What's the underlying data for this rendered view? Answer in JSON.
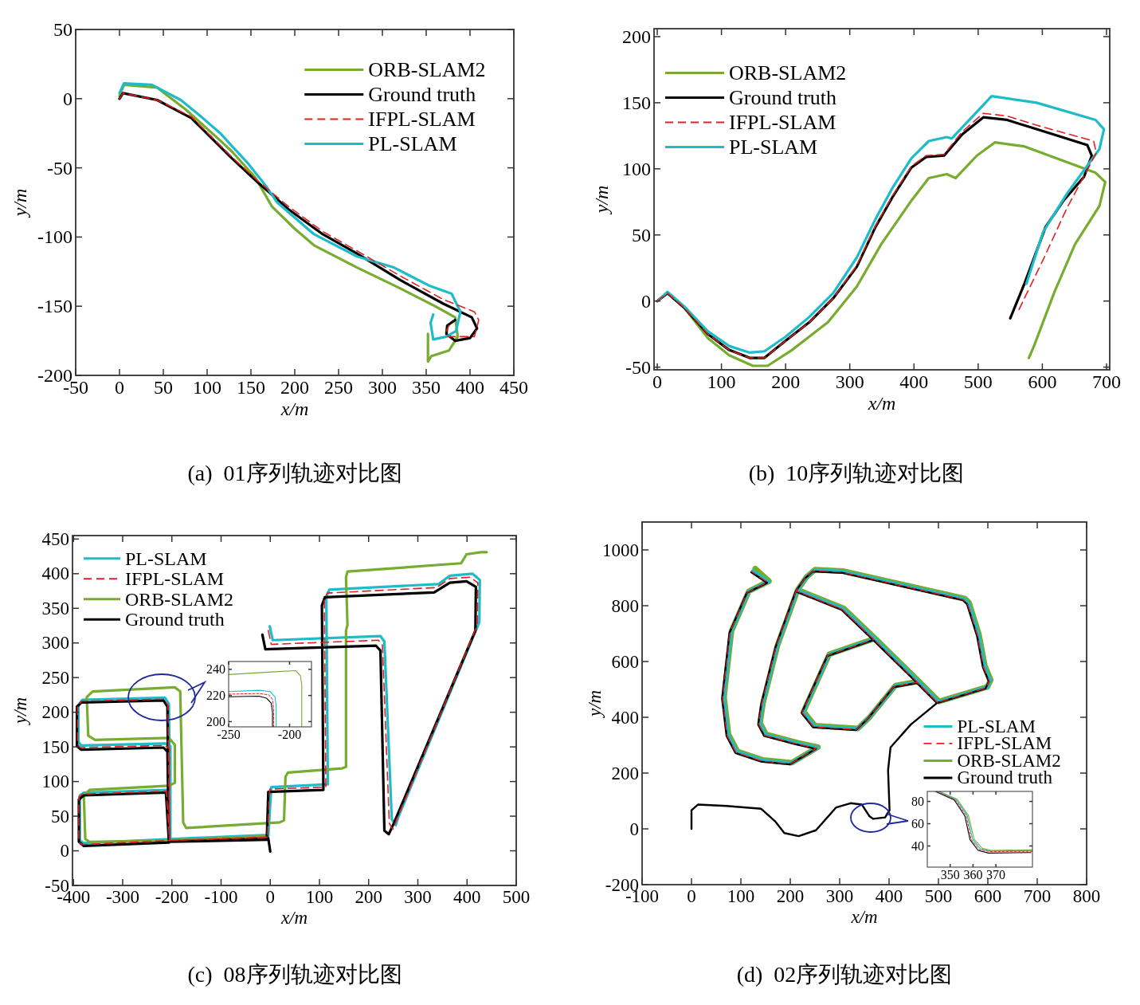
{
  "chart_data": [
    {
      "type": "line",
      "title": "(a)  01序列轨迹对比图",
      "xlabel": "x/m",
      "ylabel": "y/m",
      "xlim": [
        -50,
        450
      ],
      "ylim": [
        -200,
        50
      ],
      "xticks": [
        -50,
        0,
        50,
        100,
        150,
        200,
        250,
        300,
        350,
        400,
        450
      ],
      "yticks": [
        -200,
        -150,
        -100,
        -50,
        0,
        50
      ],
      "legend": "top right",
      "series": [
        {
          "name": "ORB-SLAM2",
          "color": "#77ac30",
          "line_style": "solid",
          "x": [
            0,
            5,
            43,
            76,
            111,
            128,
            155,
            174,
            200,
            222,
            271,
            320,
            360,
            383,
            386,
            376,
            356,
            352,
            352
          ],
          "values": [
            2,
            10,
            8,
            -8,
            -28,
            -38,
            -57,
            -78,
            -94,
            -106,
            -122,
            -137,
            -150,
            -158,
            -172,
            -182,
            -186,
            -190,
            -170
          ]
        },
        {
          "name": "Ground truth",
          "color": "#000000",
          "line_style": "solid",
          "x": [
            0,
            4,
            43,
            82,
            101,
            128,
            157,
            193,
            232,
            271,
            320,
            369,
            402,
            408,
            400,
            383,
            373,
            374,
            383
          ],
          "values": [
            0,
            4,
            -1,
            -14,
            -26,
            -43,
            -60,
            -80,
            -98,
            -112,
            -131,
            -148,
            -158,
            -166,
            -173,
            -175,
            -170,
            -164,
            -160
          ]
        },
        {
          "name": "IFPL-SLAM",
          "color": "#e02020",
          "line_style": "dashed",
          "x": [
            0,
            4,
            43,
            82,
            101,
            128,
            157,
            193,
            232,
            271,
            320,
            369,
            405,
            410,
            405,
            375,
            373,
            376
          ],
          "values": [
            0,
            4,
            -1,
            -13,
            -25,
            -42,
            -59,
            -78,
            -96,
            -110,
            -128,
            -145,
            -154,
            -160,
            -172,
            -172,
            -168,
            -164
          ]
        },
        {
          "name": "PL-SLAM",
          "color": "#1ebcc8",
          "line_style": "solid",
          "x": [
            0,
            5,
            37,
            70,
            95,
            115,
            128,
            147,
            167,
            180,
            222,
            271,
            313,
            353,
            379,
            389,
            384,
            373,
            358,
            355,
            358
          ],
          "values": [
            4,
            11,
            10,
            -1,
            -14,
            -25,
            -34,
            -47,
            -63,
            -75,
            -98,
            -114,
            -122,
            -135,
            -141,
            -154,
            -168,
            -172,
            -174,
            -162,
            -156
          ]
        }
      ]
    },
    {
      "type": "line",
      "title": "(b)  10序列轨迹对比图",
      "xlabel": "x/m",
      "ylabel": "y/m",
      "xlim": [
        -5,
        705
      ],
      "ylim": [
        -52,
        206
      ],
      "xticks": [
        0,
        100,
        200,
        300,
        400,
        500,
        600,
        700
      ],
      "yticks": [
        -50,
        0,
        50,
        100,
        150,
        200
      ],
      "legend": "top left",
      "series": [
        {
          "name": "ORB-SLAM2",
          "color": "#77ac30",
          "line_style": "solid",
          "x": [
            0,
            16,
            42,
            79,
            112,
            149,
            172,
            210,
            266,
            311,
            349,
            396,
            423,
            451,
            465,
            498,
            526,
            572,
            683,
            698,
            689,
            651,
            619,
            587,
            579
          ],
          "values": [
            0,
            6,
            -5,
            -28,
            -41,
            -49,
            -49,
            -37,
            -16,
            11,
            43,
            76,
            93,
            96,
            93,
            110,
            120,
            117,
            97,
            90,
            72,
            43,
            7,
            -34,
            -43
          ]
        },
        {
          "name": "Ground truth",
          "color": "#000000",
          "line_style": "solid",
          "x": [
            0,
            16,
            42,
            79,
            112,
            144,
            167,
            200,
            237,
            274,
            311,
            340,
            367,
            396,
            419,
            447,
            475,
            508,
            545,
            591,
            670,
            677,
            665,
            633,
            605,
            572,
            550
          ],
          "values": [
            0,
            6,
            -5,
            -25,
            -37,
            -43,
            -43,
            -30,
            -16,
            2,
            26,
            56,
            79,
            101,
            109,
            110,
            126,
            139,
            137,
            130,
            118,
            110,
            94,
            76,
            56,
            13,
            -13
          ]
        },
        {
          "name": "IFPL-SLAM",
          "color": "#e02020",
          "line_style": "dashed",
          "x": [
            0,
            16,
            42,
            79,
            112,
            144,
            167,
            200,
            237,
            274,
            311,
            340,
            367,
            396,
            419,
            447,
            475,
            508,
            545,
            591,
            680,
            684,
            638,
            601,
            563
          ],
          "values": [
            0,
            6,
            -5,
            -25,
            -37,
            -43,
            -43,
            -30,
            -16,
            2,
            27,
            57,
            80,
            102,
            110,
            111,
            128,
            142,
            140,
            133,
            121,
            112,
            70,
            31,
            -7
          ]
        },
        {
          "name": "PL-SLAM",
          "color": "#1ebcc8",
          "line_style": "solid",
          "x": [
            0,
            16,
            42,
            79,
            112,
            144,
            167,
            200,
            237,
            274,
            311,
            340,
            367,
            396,
            423,
            451,
            459,
            521,
            591,
            683,
            696,
            689,
            638,
            601,
            575
          ],
          "values": [
            0,
            7,
            -4,
            -23,
            -34,
            -39,
            -38,
            -27,
            -12,
            6,
            33,
            62,
            86,
            108,
            121,
            124,
            123,
            155,
            150,
            137,
            130,
            115,
            81,
            52,
            13
          ]
        }
      ]
    },
    {
      "type": "line",
      "title": "(c)  08序列轨迹对比图",
      "xlabel": "x/m",
      "ylabel": "y/m",
      "xlim": [
        -402,
        500
      ],
      "ylim": [
        -50,
        455
      ],
      "xticks": [
        -400,
        -300,
        -200,
        -100,
        0,
        100,
        200,
        300,
        400,
        500
      ],
      "yticks": [
        -50,
        0,
        50,
        100,
        150,
        200,
        250,
        300,
        350,
        400,
        450
      ],
      "legend": "top left",
      "series": [
        {
          "name": "PL-SLAM",
          "color": "#1ebcc8",
          "line_style": "solid",
          "x": [
            -1,
            5,
            224,
            232,
            247,
            255,
            261,
            425,
            426,
            411,
            365,
            342,
            120,
            114,
            117,
            2,
            -4,
            -203,
            -209,
            -379,
            -387,
            -387,
            -379,
            -203,
            -203,
            -214,
            -384,
            -390,
            -390,
            -382,
            -214,
            -206,
            -203,
            -4
          ],
          "values": [
            324,
            304,
            310,
            302,
            46,
            37,
            50,
            330,
            391,
            400,
            397,
            385,
            377,
            367,
            96,
            92,
            21,
            17,
            88,
            84,
            80,
            15,
            11,
            17,
            151,
            155,
            152,
            157,
            210,
            218,
            221,
            212,
            17,
            23
          ]
        },
        {
          "name": "IFPL-SLAM",
          "color": "#e02020",
          "line_style": "dashed",
          "x": [
            -4,
            2,
            220,
            228,
            242,
            249,
            257,
            421,
            422,
            406,
            365,
            338,
            116,
            110,
            113,
            -1,
            -6,
            -205,
            -211,
            -381,
            -389,
            -389,
            -381,
            -205,
            -205,
            -216,
            -386,
            -392,
            -392,
            -384,
            -216,
            -208,
            -205,
            -6
          ],
          "values": [
            318,
            298,
            304,
            297,
            40,
            31,
            45,
            326,
            387,
            395,
            393,
            380,
            372,
            362,
            92,
            89,
            19,
            15,
            86,
            82,
            78,
            12,
            9,
            15,
            148,
            152,
            149,
            154,
            209,
            216,
            219,
            210,
            15,
            20
          ]
        },
        {
          "name": "ORB-SLAM2",
          "color": "#77ac30",
          "line_style": "solid",
          "x": [
            440,
            428,
            399,
            388,
            157,
            154,
            157,
            154,
            154,
            146,
            36,
            31,
            28,
            19,
            -171,
            -177,
            -183,
            -194,
            -361,
            -373,
            -370,
            -356,
            -206,
            -194,
            -194,
            -206,
            -367,
            -379,
            -376,
            -367,
            -206,
            -10
          ],
          "values": [
            431,
            431,
            428,
            415,
            403,
            395,
            326,
            318,
            121,
            119,
            113,
            107,
            44,
            41,
            33,
            41,
            230,
            236,
            230,
            222,
            166,
            160,
            163,
            153,
            98,
            94,
            88,
            80,
            17,
            13,
            15,
            21
          ]
        },
        {
          "name": "Ground truth",
          "color": "#000000",
          "line_style": "solid",
          "x": [
            -16,
            -10,
            215,
            224,
            232,
            241,
            252,
            417,
            418,
            399,
            365,
            333,
            111,
            105,
            108,
            -4,
            -7,
            -206,
            -212,
            -379,
            -389,
            -389,
            -379,
            -206,
            -209,
            -217,
            -384,
            -393,
            -393,
            -384,
            -217,
            -209,
            -206,
            -4,
            0
          ],
          "values": [
            312,
            291,
            296,
            289,
            29,
            24,
            41,
            318,
            381,
            389,
            387,
            373,
            366,
            354,
            88,
            85,
            16,
            13,
            84,
            80,
            74,
            13,
            7,
            12,
            143,
            149,
            146,
            151,
            208,
            214,
            217,
            208,
            13,
            18,
            -1
          ]
        }
      ]
    },
    {
      "type": "line",
      "xlim": [
        -250,
        -182
      ],
      "ylim": [
        196,
        246
      ],
      "xticks": [
        -250,
        -200
      ],
      "yticks": [
        200,
        220,
        240
      ],
      "series": [
        {
          "color": "#77ac30",
          "line_style": "solid",
          "x": [
            -250,
            -215,
            -195,
            -191,
            -190,
            -190
          ],
          "values": [
            236,
            238,
            239,
            235,
            228,
            196
          ]
        },
        {
          "color": "#1ebcc8",
          "line_style": "solid",
          "x": [
            -250,
            -225,
            -216,
            -212,
            -211,
            -211
          ],
          "values": [
            223,
            224,
            223,
            219,
            212,
            196
          ]
        },
        {
          "color": "#e02020",
          "line_style": "dashed",
          "x": [
            -250,
            -225,
            -217,
            -214,
            -213,
            -213
          ],
          "values": [
            221,
            221.5,
            220.5,
            217,
            210,
            196
          ]
        },
        {
          "color": "#000000",
          "line_style": "solid",
          "x": [
            -250,
            -225,
            -219,
            -215,
            -214,
            -214
          ],
          "values": [
            219,
            219.5,
            218,
            214,
            207,
            196
          ]
        }
      ]
    },
    {
      "type": "line",
      "title": "(d)  02序列轨迹对比图",
      "xlabel": "x/m",
      "ylabel": "y/m",
      "xlim": [
        -100,
        800
      ],
      "ylim": [
        -200,
        1100
      ],
      "xticks": [
        -100,
        0,
        100,
        200,
        300,
        400,
        500,
        600,
        700,
        800
      ],
      "yticks": [
        -200,
        0,
        200,
        400,
        600,
        800,
        1000
      ],
      "legend": "right",
      "series": [
        {
          "name": "PL-SLAM",
          "color": "#1ebcc8",
          "line_style": "solid",
          "x": [
            500,
            459,
            412,
            360,
            336,
            249,
            226,
            278,
            371,
            307,
            214,
            232,
            249,
            307,
            552,
            561,
            581,
            593,
            605,
            598,
            500,
            454,
            371,
            307,
            214,
            173,
            144,
            138,
            150,
            214,
            255,
            202,
            144,
            92,
            74,
            65,
            80,
            115,
            156,
            124
          ],
          "values": [
            455,
            527,
            512,
            399,
            358,
            368,
            419,
            624,
            681,
            789,
            855,
            901,
            927,
            922,
            824,
            809,
            696,
            583,
            532,
            507,
            455,
            537,
            681,
            789,
            855,
            655,
            450,
            378,
            337,
            307,
            291,
            235,
            245,
            276,
            337,
            471,
            707,
            850,
            886,
            924
          ]
        },
        {
          "name": "IFPL-SLAM",
          "color": "#e02020",
          "line_style": "dashed",
          "x": [
            498,
            457,
            410,
            358,
            334,
            247,
            224,
            276,
            369,
            305,
            212,
            230,
            247,
            305,
            550,
            559,
            579,
            591,
            603,
            596,
            498,
            452,
            369,
            305,
            212,
            171,
            142,
            136,
            148,
            212,
            253,
            200,
            142,
            90,
            72,
            63,
            78,
            113,
            154,
            122
          ],
          "values": [
            453,
            525,
            510,
            397,
            356,
            366,
            417,
            622,
            679,
            787,
            853,
            899,
            925,
            920,
            822,
            807,
            694,
            581,
            530,
            505,
            453,
            535,
            679,
            787,
            853,
            653,
            448,
            376,
            335,
            305,
            289,
            233,
            243,
            274,
            335,
            469,
            705,
            848,
            884,
            922
          ]
        },
        {
          "name": "ORB-SLAM2",
          "color": "#77ac30",
          "line_style": "solid",
          "x": [
            501,
            460,
            413,
            361,
            337,
            250,
            227,
            279,
            372,
            308,
            215,
            233,
            250,
            308,
            553,
            562,
            582,
            594,
            606,
            599,
            501,
            455,
            372,
            308,
            215,
            174,
            145,
            139,
            151,
            215,
            256,
            203,
            145,
            93,
            75,
            66,
            81,
            116,
            157,
            129
          ],
          "values": [
            457,
            529,
            514,
            401,
            360,
            370,
            421,
            626,
            683,
            791,
            857,
            903,
            929,
            924,
            826,
            811,
            698,
            585,
            534,
            509,
            457,
            539,
            683,
            791,
            857,
            657,
            452,
            380,
            339,
            309,
            293,
            237,
            247,
            278,
            339,
            473,
            709,
            852,
            888,
            933
          ]
        },
        {
          "name": "Ground truth",
          "color": "#000000",
          "line_style": "solid",
          "x": [
            0,
            0,
            13,
            71,
            141,
            170,
            188,
            217,
            252,
            293,
            322,
            345,
            360,
            368,
            392,
            401,
            398,
            403,
            444,
            497,
            456,
            409,
            357,
            333,
            246,
            223,
            275,
            368,
            304,
            211,
            229,
            246,
            304,
            549,
            558,
            578,
            590,
            602,
            595,
            497,
            451,
            368,
            304,
            211,
            170,
            141,
            135,
            147,
            211,
            252,
            199,
            141,
            89,
            71,
            62,
            77,
            112,
            153,
            121
          ],
          "values": [
            0,
            67,
            87,
            82,
            72,
            26,
            -15,
            -26,
            -5,
            77,
            92,
            87,
            46,
            36,
            41,
            67,
            210,
            292,
            374,
            451,
            523,
            508,
            395,
            354,
            364,
            415,
            620,
            677,
            785,
            851,
            897,
            923,
            918,
            820,
            805,
            692,
            579,
            528,
            503,
            451,
            533,
            677,
            785,
            851,
            651,
            446,
            374,
            333,
            303,
            287,
            231,
            241,
            272,
            333,
            467,
            703,
            846,
            882,
            920
          ]
        }
      ]
    },
    {
      "type": "line",
      "xlim": [
        340,
        386
      ],
      "ylim": [
        21,
        89
      ],
      "xticks": [
        350,
        360,
        370
      ],
      "yticks": [
        40,
        60,
        80
      ],
      "series": [
        {
          "color": "#77ac30",
          "line_style": "solid",
          "x": [
            345.5,
            353,
            358,
            360.5,
            364,
            368,
            386
          ],
          "values": [
            88.8,
            82,
            67.5,
            46,
            38,
            36,
            36.5
          ]
        },
        {
          "color": "#1ebcc8",
          "line_style": "solid",
          "x": [
            344.8,
            352.6,
            357.5,
            359.8,
            363.2,
            367.6,
            386
          ],
          "values": [
            88.8,
            81.8,
            67.3,
            46,
            37.5,
            35.5,
            35.8
          ]
        },
        {
          "color": "#e02020",
          "line_style": "dashed",
          "x": [
            344.2,
            352.2,
            357,
            359.2,
            362.7,
            367.2,
            386
          ],
          "values": [
            88.8,
            81.5,
            67.2,
            45.8,
            36.8,
            35,
            35.2
          ]
        },
        {
          "color": "#000000",
          "line_style": "solid",
          "x": [
            343.7,
            351.8,
            356.4,
            358.7,
            362.2,
            366.8,
            385.3
          ],
          "values": [
            88.8,
            81.3,
            67,
            45.6,
            36,
            33.6,
            34.1
          ]
        }
      ]
    }
  ]
}
